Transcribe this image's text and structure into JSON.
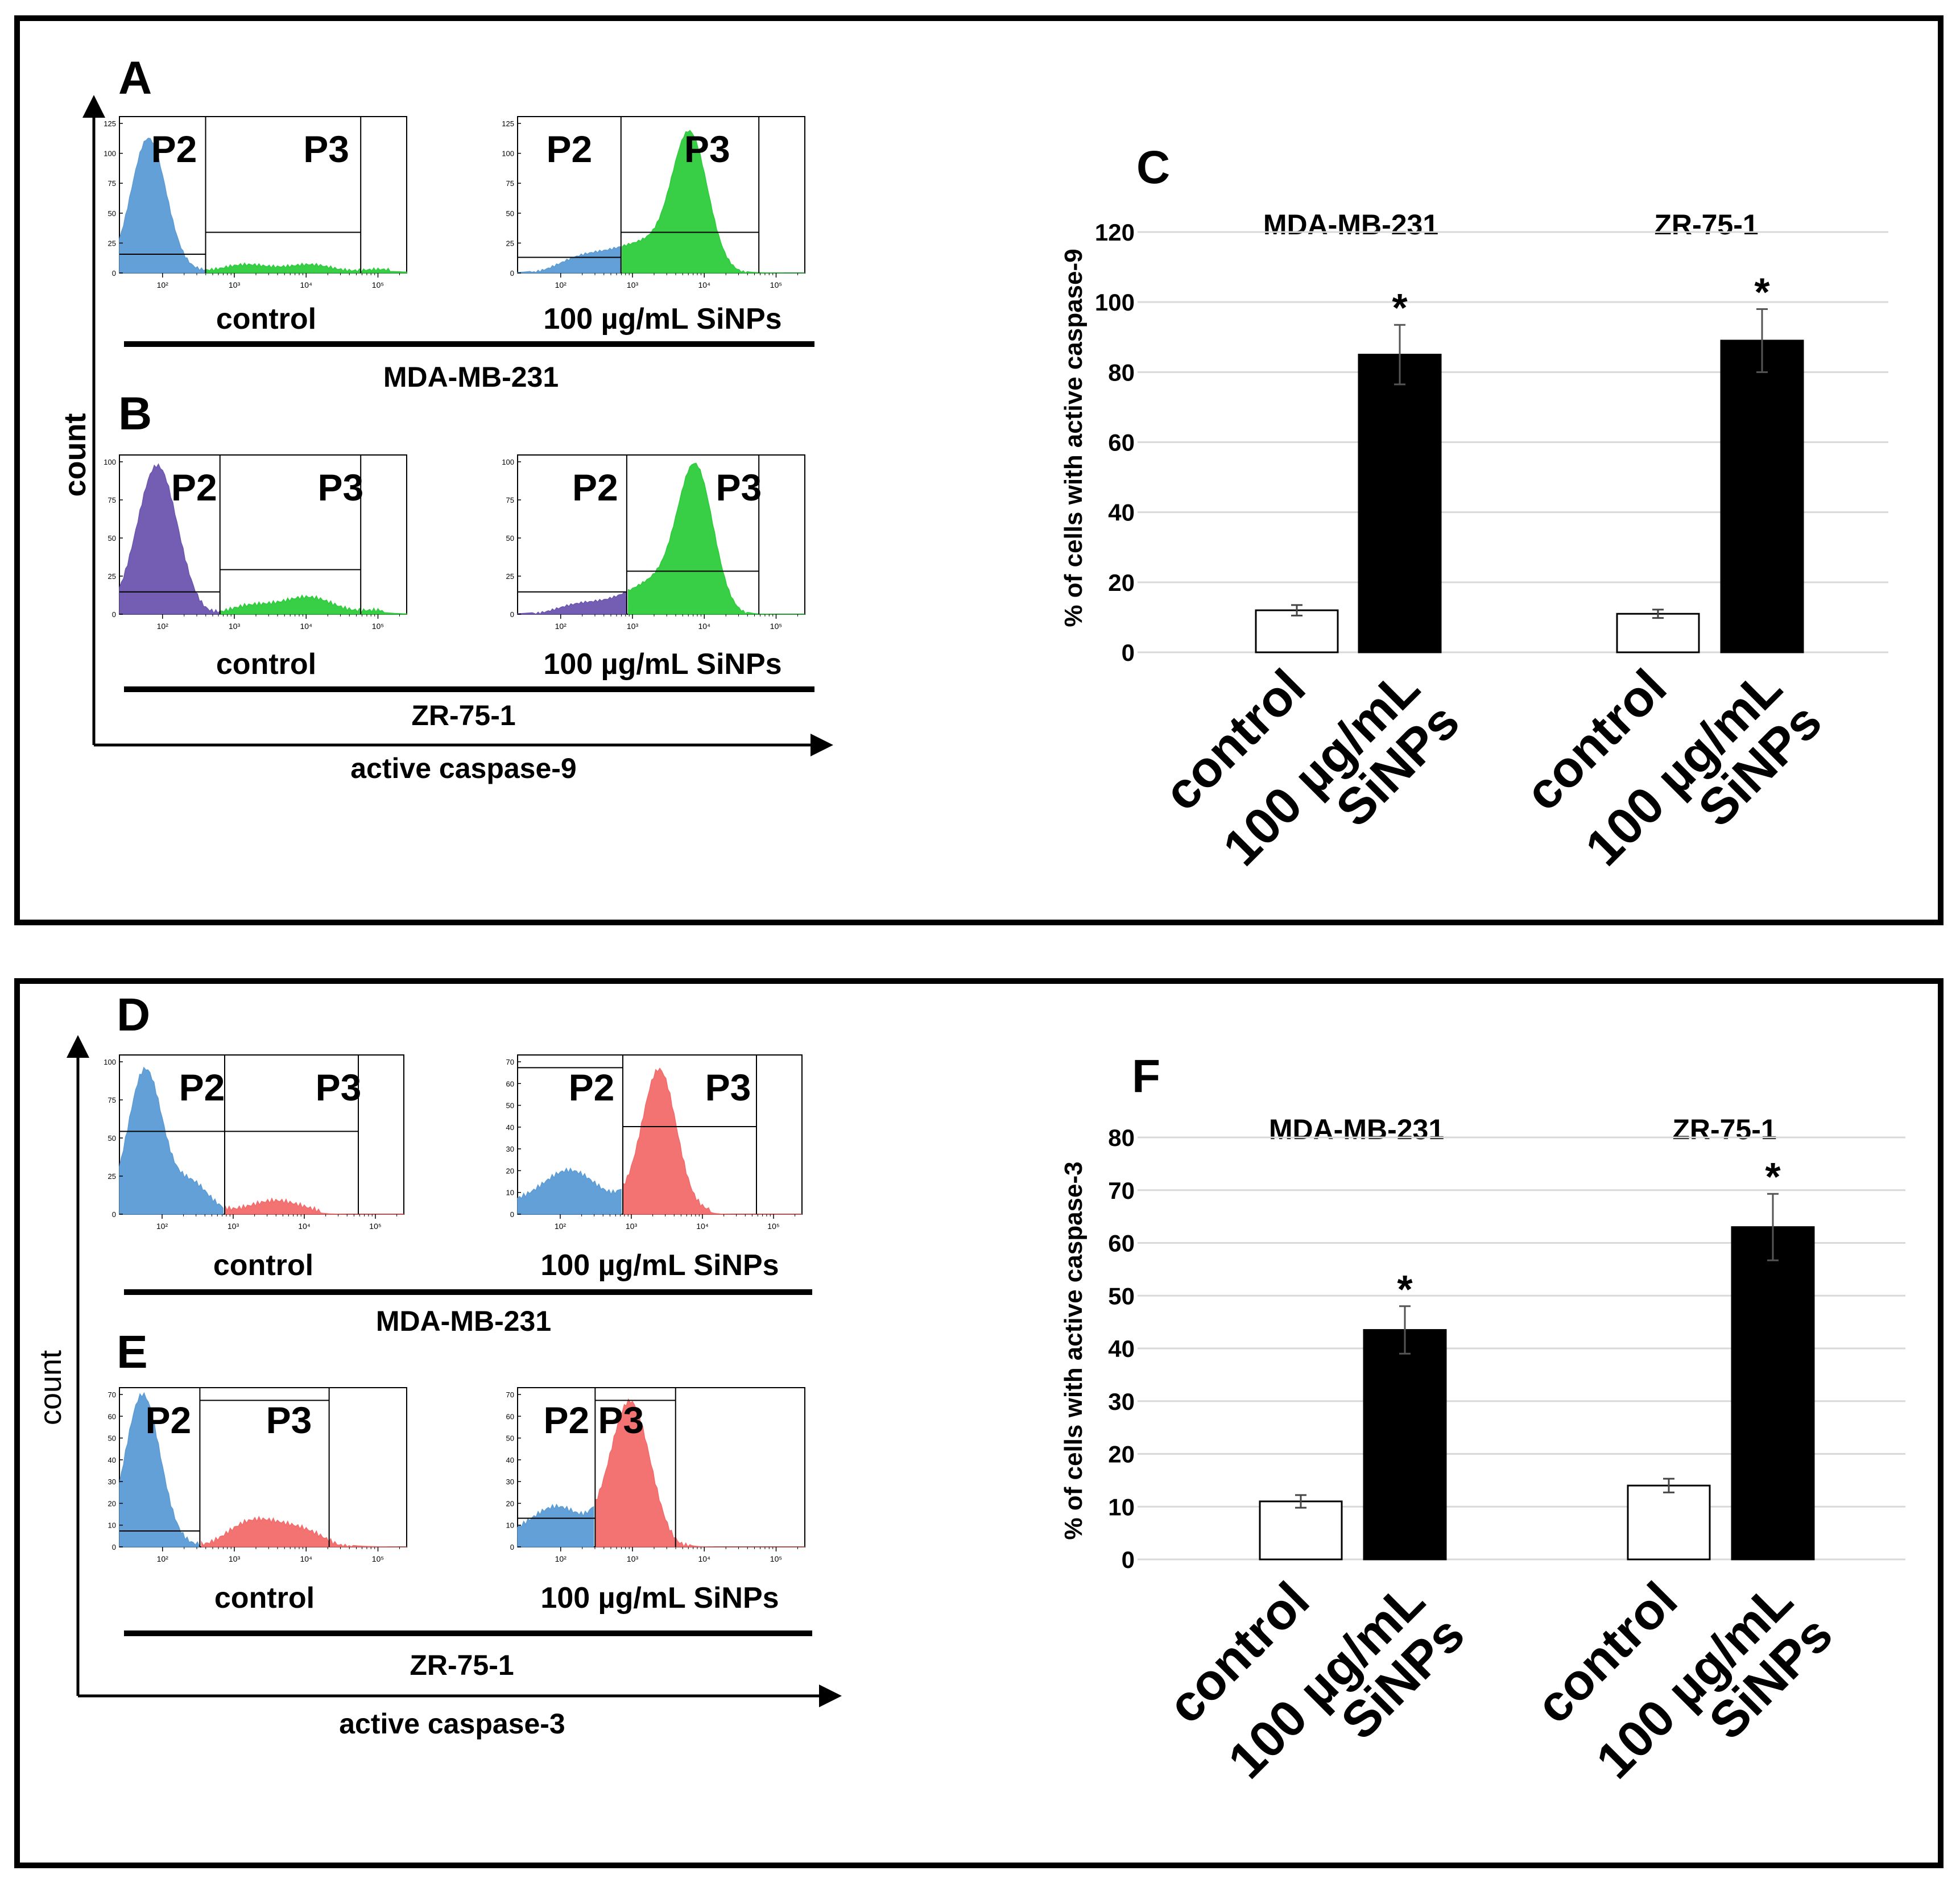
{
  "colors": {
    "blue": "#5B9BD5",
    "purple": "#6B55B0",
    "green": "#2DCB3C",
    "red": "#F26A6A",
    "bar_control": "#ffffff",
    "bar_treated": "#000000"
  },
  "labels": {
    "panel_a": "A",
    "panel_b": "B",
    "panel_c": "C",
    "panel_d": "D",
    "panel_e": "E",
    "panel_f": "F",
    "count": "count",
    "caspase9_axis": "active caspase-9",
    "caspase3_axis": "active caspase-3",
    "mda": "MDA-MB-231",
    "zr": "ZR-75-1",
    "control": "control",
    "sinps": "100 µg/mL SiNPs",
    "sinps_line1": "100 µg/mL",
    "sinps_line2": "SiNPs",
    "p2": "P2",
    "p3": "P3",
    "ylabel_c": "% of cells with active caspase-9",
    "ylabel_f": "% of cells with active caspase-3",
    "star": "*"
  },
  "histogram_ticks": {
    "y125": [
      "125",
      "100",
      "75",
      "50",
      "25",
      "0"
    ],
    "y100": [
      "100",
      "75",
      "50",
      "25",
      "0"
    ],
    "y70": [
      "70",
      "60",
      "50",
      "40",
      "30",
      "20",
      "10",
      "0"
    ],
    "x": [
      "10²",
      "10³",
      "10⁴",
      "10⁵"
    ]
  },
  "chart_data": [
    {
      "type": "bar",
      "panel": "C",
      "title": "",
      "ylabel": "% of cells with active caspase-9",
      "ylim": [
        0,
        120
      ],
      "yticks": [
        0,
        20,
        40,
        60,
        80,
        100,
        120
      ],
      "groups": [
        "MDA-MB-231",
        "ZR-75-1"
      ],
      "categories": [
        "control",
        "100 µg/mL SiNPs"
      ],
      "series": [
        {
          "name": "MDA-MB-231",
          "values": [
            12,
            85
          ],
          "errors": [
            1.5,
            8.5
          ],
          "significant": [
            false,
            true
          ]
        },
        {
          "name": "ZR-75-1",
          "values": [
            11,
            89
          ],
          "errors": [
            1.2,
            9
          ],
          "significant": [
            false,
            true
          ]
        }
      ],
      "grid": true
    },
    {
      "type": "bar",
      "panel": "F",
      "title": "",
      "ylabel": "% of cells with active caspase-3",
      "ylim": [
        0,
        80
      ],
      "yticks": [
        0,
        10,
        20,
        30,
        40,
        50,
        60,
        70,
        80
      ],
      "groups": [
        "MDA-MB-231",
        "ZR-75-1"
      ],
      "categories": [
        "control",
        "100 µg/mL SiNPs"
      ],
      "series": [
        {
          "name": "MDA-MB-231",
          "values": [
            11,
            43.5
          ],
          "errors": [
            1.2,
            4.5
          ],
          "significant": [
            false,
            true
          ]
        },
        {
          "name": "ZR-75-1",
          "values": [
            14,
            63
          ],
          "errors": [
            1.3,
            6.3
          ],
          "significant": [
            false,
            true
          ]
        }
      ],
      "grid": true
    }
  ]
}
